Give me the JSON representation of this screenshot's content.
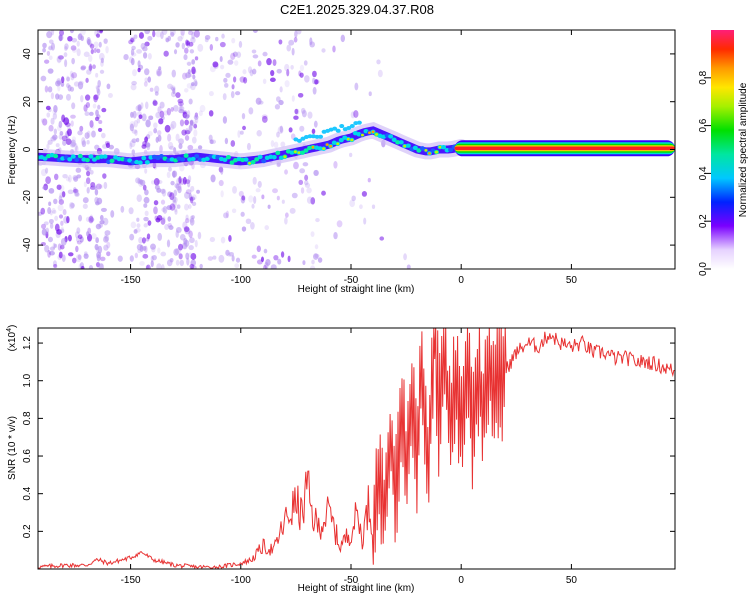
{
  "title": "C2E1.2025.329.04.37.R08",
  "colors": {
    "snr_line": "#e83232",
    "frame": "#000000",
    "ridge_low": "#3a00ff",
    "ridge_mid": "#00e0c8",
    "ridge_high": "#ff2020",
    "scatter": "#8a3cf0"
  },
  "colorbar": {
    "label": "Normalized spectral amplitude",
    "ticks": [
      "0.0",
      "0.2",
      "0.4",
      "0.6",
      "0.8"
    ],
    "tick_values": [
      0.0,
      0.2,
      0.4,
      0.6,
      0.8
    ],
    "range": [
      0,
      1
    ]
  },
  "chart_data": [
    {
      "type": "heatmap",
      "title": "C2E1.2025.329.04.37.R08",
      "xlabel": "Height of straight line (km)",
      "ylabel": "Frequency (Hz)",
      "xlim": [
        -192,
        97
      ],
      "ylim": [
        -50,
        50
      ],
      "xticks": [
        -150,
        -100,
        -50,
        0,
        50
      ],
      "xtick_labels": [
        "-150",
        "-100",
        "-50",
        "0",
        "50"
      ],
      "yticks": [
        -40,
        -20,
        0,
        20,
        40
      ],
      "ytick_labels": [
        "-40",
        "-20",
        "0",
        "20",
        "40"
      ],
      "ridge": {
        "x": [
          -192,
          -175,
          -160,
          -150,
          -140,
          -130,
          -120,
          -110,
          -100,
          -90,
          -80,
          -70,
          -60,
          -55,
          -50,
          -45,
          -40,
          -35,
          -30,
          -25,
          -20,
          -15,
          -10,
          -5,
          0,
          5,
          10,
          20,
          40,
          60,
          80,
          97
        ],
        "freq": [
          -3,
          -4,
          -4,
          -5,
          -4,
          -4,
          -3,
          -4,
          -5,
          -4,
          -2,
          0,
          2,
          4,
          5,
          7,
          8,
          6,
          4,
          2,
          0,
          -1,
          0,
          0,
          1,
          1,
          0,
          0,
          0,
          0,
          0,
          0
        ],
        "amplitude": [
          0.3,
          0.35,
          0.4,
          0.35,
          0.3,
          0.3,
          0.35,
          0.45,
          0.55,
          0.55,
          0.5,
          0.5,
          0.45,
          0.4,
          0.4,
          0.45,
          0.55,
          0.5,
          0.45,
          0.5,
          0.6,
          0.8,
          0.85,
          0.9,
          0.95,
          0.95,
          0.95,
          0.95,
          0.95,
          0.95,
          0.95,
          0.95
        ]
      }
    },
    {
      "type": "line",
      "title": "",
      "xlabel": "Height of straight line (km)",
      "ylabel": "SNR (10 * v/v)",
      "scale_note": "(x10",
      "scale_exp": "4",
      "xlim": [
        -192,
        97
      ],
      "ylim": [
        0,
        1.28
      ],
      "xticks": [
        -150,
        -100,
        -50,
        0,
        50
      ],
      "xtick_labels": [
        "-150",
        "-100",
        "-50",
        "0",
        "50"
      ],
      "yticks": [
        0.2,
        0.4,
        0.6,
        0.8,
        1.0,
        1.2
      ],
      "ytick_labels": [
        "0.2",
        "0.4",
        "0.6",
        "0.8",
        "1.0",
        "1.2"
      ],
      "series": [
        {
          "name": "SNR",
          "x": [
            -192,
            -180,
            -170,
            -165,
            -160,
            -150,
            -145,
            -140,
            -130,
            -120,
            -110,
            -100,
            -95,
            -90,
            -85,
            -80,
            -75,
            -72,
            -70,
            -68,
            -65,
            -60,
            -55,
            -50,
            -47,
            -45,
            -42,
            -40,
            -37,
            -35,
            -32,
            -30,
            -27,
            -25,
            -22,
            -20,
            -18,
            -15,
            -12,
            -10,
            -8,
            -5,
            -3,
            0,
            3,
            5,
            8,
            10,
            12,
            15,
            20,
            25,
            30,
            35,
            40,
            45,
            50,
            55,
            60,
            65,
            70,
            75,
            80,
            85,
            90,
            97
          ],
          "values": [
            0.01,
            0.02,
            0.02,
            0.05,
            0.03,
            0.06,
            0.09,
            0.05,
            0.02,
            0.01,
            0.01,
            0.03,
            0.05,
            0.12,
            0.1,
            0.25,
            0.35,
            0.28,
            0.45,
            0.3,
            0.22,
            0.3,
            0.12,
            0.2,
            0.3,
            0.15,
            0.35,
            0.2,
            0.45,
            0.28,
            0.7,
            0.4,
            0.85,
            0.5,
            0.95,
            0.6,
            1.1,
            0.55,
            1.28,
            0.75,
            1.25,
            0.7,
            1.0,
            0.82,
            1.05,
            0.72,
            1.05,
            0.78,
            1.1,
            0.95,
            1.05,
            1.15,
            1.2,
            1.18,
            1.25,
            1.2,
            1.18,
            1.2,
            1.15,
            1.15,
            1.12,
            1.12,
            1.1,
            1.1,
            1.08,
            1.05
          ]
        }
      ]
    }
  ]
}
